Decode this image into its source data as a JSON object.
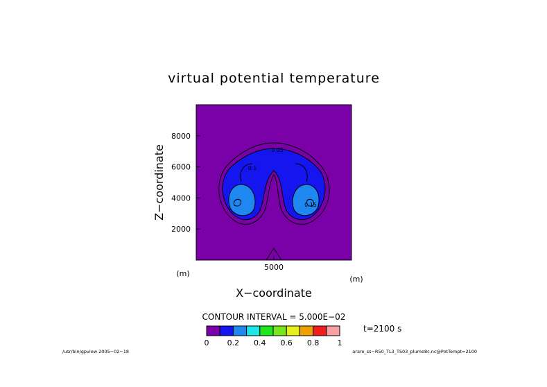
{
  "chart_data": {
    "type": "heatmap",
    "title": "virtual potential temperature",
    "xlabel": "X−coordinate",
    "ylabel": "Z−coordinate",
    "x_unit": "(m)",
    "y_unit": "(m)",
    "x_unit_right": "(m)",
    "xlim": [
      0,
      10000
    ],
    "ylim": [
      0,
      10000
    ],
    "x_ticks": [
      5000
    ],
    "x_tick_labels": [
      "5000"
    ],
    "y_ticks": [
      2000,
      4000,
      6000,
      8000
    ],
    "y_tick_labels": [
      "2000",
      "4000",
      "6000",
      "8000"
    ],
    "contour_interval_text": "CONTOUR INTERVAL = 5.000E−02",
    "time_label": "t=2100 s",
    "colorbar": {
      "levels": [
        0,
        0.1,
        0.2,
        0.3,
        0.4,
        0.5,
        0.6,
        0.7,
        0.8,
        0.9,
        1.0
      ],
      "tick_values": [
        0,
        0.2,
        0.4,
        0.6,
        0.8,
        1
      ],
      "tick_labels": [
        "0",
        "0.2",
        "0.4",
        "0.6",
        "0.8",
        "1"
      ],
      "colors": [
        "#7a00a8",
        "#1515f0",
        "#1e88f0",
        "#1ee6e6",
        "#1ee61e",
        "#78e61e",
        "#e6f01e",
        "#f0a000",
        "#f01e1e",
        "#f8a0a0"
      ]
    },
    "background_color": "#7a00a8",
    "contour_labels": [
      "0.05",
      "0.1",
      "0.15"
    ]
  },
  "footer": {
    "left": "/usr/bin/gpview  2005−02−18",
    "right": "arare_ss−R50_TL3_TS03_plume8c.nc@PotTempt=2100"
  }
}
